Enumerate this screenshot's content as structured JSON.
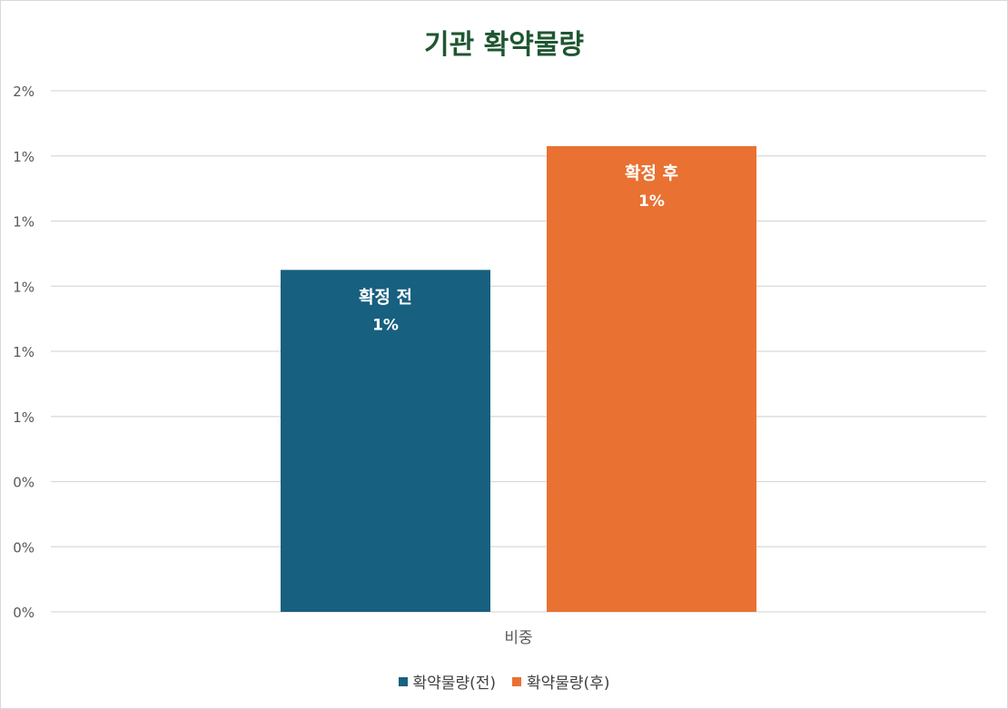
{
  "chart_data": {
    "type": "bar",
    "title": "기관 확약물량",
    "categories": [
      "비중"
    ],
    "y_tick_labels": [
      "0%",
      "0%",
      "0%",
      "1%",
      "1%",
      "1%",
      "1%",
      "1%",
      "2%"
    ],
    "ylim": [
      0,
      1.6
    ],
    "grid": true,
    "legend_position": "bottom",
    "series": [
      {
        "name": "확약물량(전)",
        "values": [
          1.05
        ],
        "color": "#17607f",
        "label_name": "확정 전",
        "label_value": "1%"
      },
      {
        "name": "확약물량(후)",
        "values": [
          1.43
        ],
        "color": "#e97132",
        "label_name": "확정 후",
        "label_value": "1%"
      }
    ]
  }
}
